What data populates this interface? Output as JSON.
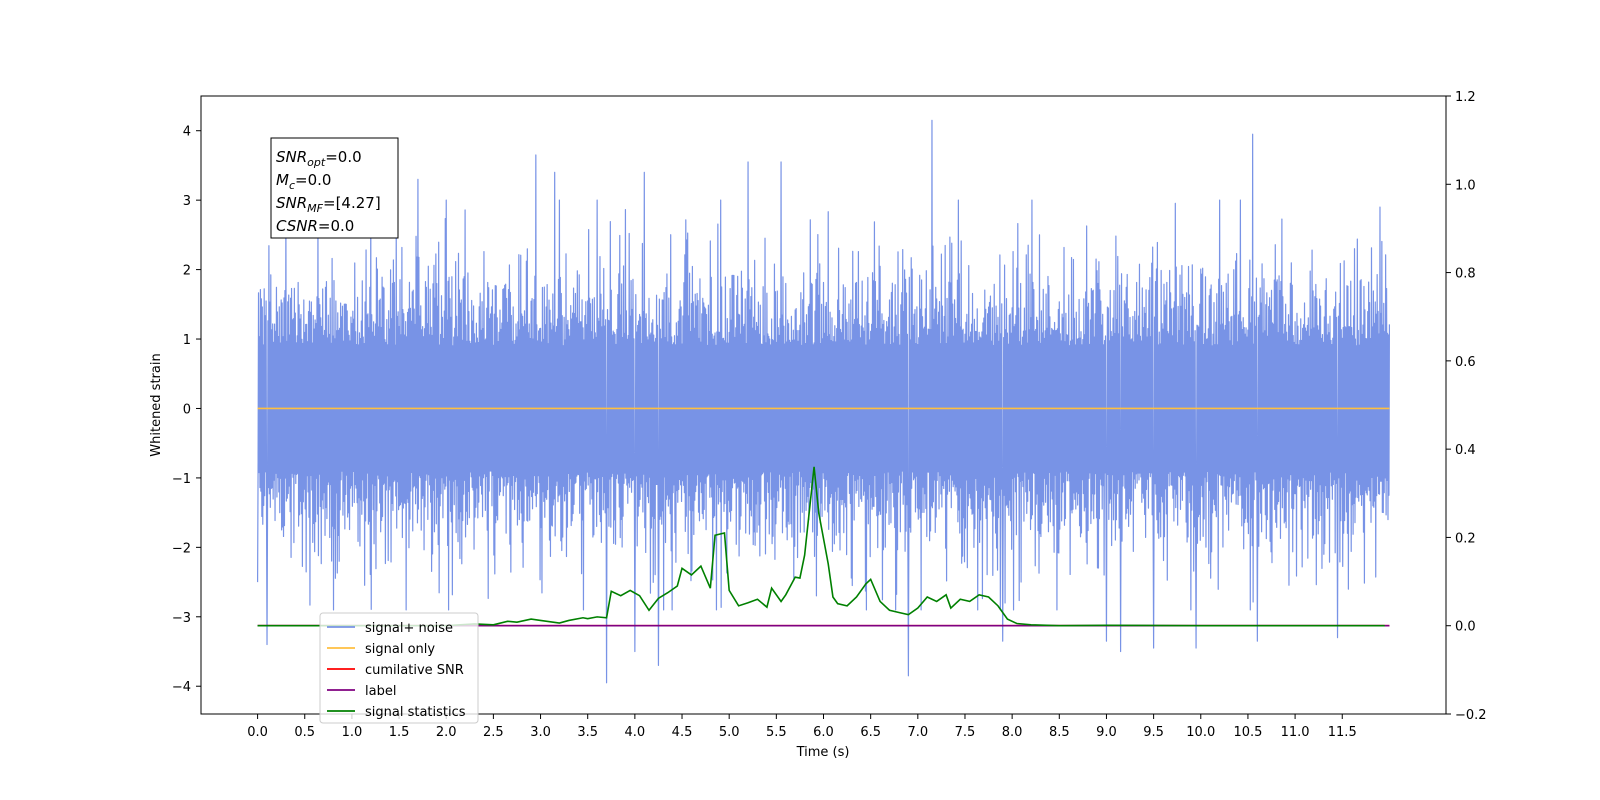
{
  "chart_data": {
    "type": "line",
    "xlabel": "Time (s)",
    "ylabel": "Whitened strain",
    "x_ticks": [
      0.0,
      0.5,
      1.0,
      1.5,
      2.0,
      2.5,
      3.0,
      3.5,
      4.0,
      4.5,
      5.0,
      5.5,
      6.0,
      6.5,
      7.0,
      7.5,
      8.0,
      8.5,
      9.0,
      9.5,
      10.0,
      10.5,
      11.0,
      11.5
    ],
    "x_range": [
      -0.6,
      12.6
    ],
    "y_left_ticks": [
      -4,
      -3,
      -2,
      -1,
      0,
      1,
      2,
      3,
      4
    ],
    "y_left_range": [
      -4.4,
      4.5
    ],
    "y_right_ticks": [
      -0.2,
      0.0,
      0.2,
      0.4,
      0.6,
      0.8,
      1.0,
      1.2
    ],
    "y_right_range": [
      -0.2,
      1.2
    ],
    "grid": false,
    "legend_position": "lower-left",
    "info_box": {
      "lines": [
        {
          "symbol": "SNR",
          "sub": "opt",
          "value": "=0.0"
        },
        {
          "symbol": "M",
          "sub": "c",
          "value": "=0.0"
        },
        {
          "symbol": "SNR",
          "sub": "MF",
          "value": "=[4.27]"
        },
        {
          "symbol": "CSNR",
          "sub": "",
          "value": "=0.0"
        }
      ]
    },
    "series": [
      {
        "name": "signal+ noise",
        "color": "#7893e6",
        "axis": "left",
        "x_start": 0.0,
        "x_end": 12.0,
        "typical_range": [
          -1.8,
          2.0
        ],
        "peaks": [
          {
            "x": 0.0,
            "y": -2.5
          },
          {
            "x": 0.1,
            "y": -3.4
          },
          {
            "x": 0.3,
            "y": 2.8
          },
          {
            "x": 1.7,
            "y": 3.3
          },
          {
            "x": 2.95,
            "y": 3.65
          },
          {
            "x": 3.15,
            "y": 3.4
          },
          {
            "x": 3.7,
            "y": -3.95
          },
          {
            "x": 4.0,
            "y": -3.5
          },
          {
            "x": 4.1,
            "y": 3.4
          },
          {
            "x": 4.25,
            "y": -3.7
          },
          {
            "x": 5.2,
            "y": 3.55
          },
          {
            "x": 5.55,
            "y": 3.55
          },
          {
            "x": 6.9,
            "y": -3.85
          },
          {
            "x": 7.15,
            "y": 4.15
          },
          {
            "x": 7.9,
            "y": -3.35
          },
          {
            "x": 9.0,
            "y": -3.35
          },
          {
            "x": 9.15,
            "y": -3.5
          },
          {
            "x": 9.5,
            "y": -3.45
          },
          {
            "x": 9.95,
            "y": -3.45
          },
          {
            "x": 10.55,
            "y": 3.95
          },
          {
            "x": 10.6,
            "y": -3.35
          },
          {
            "x": 11.45,
            "y": -3.3
          },
          {
            "x": 11.9,
            "y": 2.9
          }
        ]
      },
      {
        "name": "signal only",
        "color": "#ffbf40",
        "axis": "left",
        "x": [
          0.0,
          12.0
        ],
        "y": [
          0.0,
          0.0
        ]
      },
      {
        "name": "cumilative SNR",
        "color": "#ff0000",
        "axis": "right",
        "x": [
          0.0,
          12.0
        ],
        "y": [
          0.0,
          0.0
        ]
      },
      {
        "name": "label",
        "color": "#800080",
        "axis": "right",
        "x": [
          0.0,
          12.0
        ],
        "y": [
          0.0,
          0.0
        ]
      },
      {
        "name": "signal statistics",
        "color": "#008000",
        "axis": "right",
        "x": [
          0.0,
          2.0,
          2.3,
          2.5,
          2.65,
          2.75,
          2.9,
          3.0,
          3.2,
          3.3,
          3.45,
          3.5,
          3.6,
          3.7,
          3.75,
          3.85,
          3.95,
          4.05,
          4.15,
          4.25,
          4.35,
          4.45,
          4.5,
          4.6,
          4.7,
          4.8,
          4.85,
          4.95,
          5.0,
          5.1,
          5.2,
          5.3,
          5.4,
          5.45,
          5.55,
          5.6,
          5.7,
          5.75,
          5.8,
          5.9,
          5.95,
          6.05,
          6.1,
          6.15,
          6.25,
          6.35,
          6.45,
          6.5,
          6.6,
          6.7,
          6.8,
          6.9,
          7.0,
          7.1,
          7.2,
          7.3,
          7.35,
          7.45,
          7.55,
          7.65,
          7.75,
          7.85,
          7.95,
          8.05,
          8.2,
          8.5,
          9.0,
          10.0,
          11.0,
          11.95
        ],
        "y": [
          0.0,
          0.0,
          0.004,
          0.002,
          0.01,
          0.008,
          0.015,
          0.012,
          0.006,
          0.012,
          0.018,
          0.016,
          0.02,
          0.018,
          0.078,
          0.068,
          0.08,
          0.068,
          0.035,
          0.062,
          0.075,
          0.09,
          0.13,
          0.115,
          0.135,
          0.085,
          0.205,
          0.21,
          0.08,
          0.045,
          0.052,
          0.06,
          0.042,
          0.085,
          0.055,
          0.07,
          0.11,
          0.108,
          0.16,
          0.36,
          0.255,
          0.14,
          0.065,
          0.05,
          0.045,
          0.065,
          0.095,
          0.105,
          0.055,
          0.035,
          0.03,
          0.025,
          0.04,
          0.065,
          0.055,
          0.07,
          0.04,
          0.06,
          0.055,
          0.07,
          0.065,
          0.045,
          0.015,
          0.005,
          0.002,
          0.0,
          0.001,
          0.0,
          0.0,
          0.0
        ]
      }
    ]
  }
}
